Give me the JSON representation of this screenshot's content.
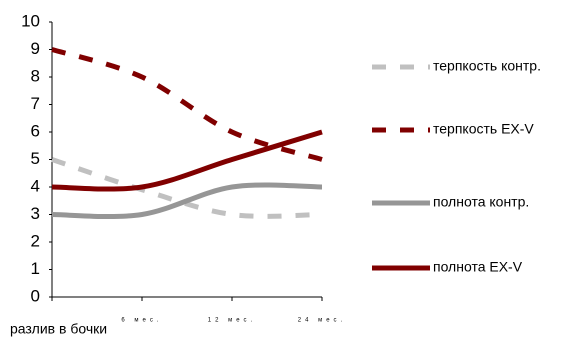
{
  "chart_data": {
    "type": "line",
    "categories": [
      "разлив в бочки",
      "6 мес.",
      "12 мес.",
      "24 мес."
    ],
    "series": [
      {
        "name": "терпкость контр.",
        "color": "#c0c0c0",
        "dash": true,
        "values": [
          5,
          3.9,
          3,
          3
        ]
      },
      {
        "name": "терпкость EX-V",
        "color": "#800000",
        "dash": true,
        "values": [
          9,
          8,
          6,
          5
        ]
      },
      {
        "name": "полнота контр.",
        "color": "#969696",
        "dash": false,
        "values": [
          3,
          3,
          4,
          4
        ]
      },
      {
        "name": "полнота EX-V",
        "color": "#800000",
        "dash": false,
        "values": [
          4,
          4,
          5,
          6
        ]
      }
    ],
    "ylim": [
      0,
      10
    ],
    "yticks": [
      0,
      1,
      2,
      3,
      4,
      5,
      6,
      7,
      8,
      9,
      10
    ],
    "grid": false,
    "smooth": true,
    "legend": "right"
  }
}
